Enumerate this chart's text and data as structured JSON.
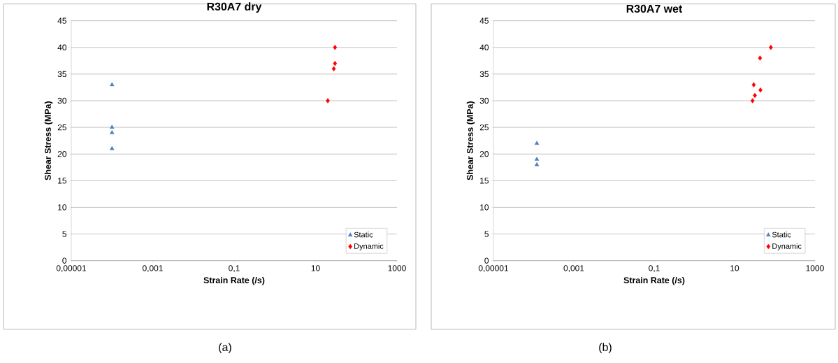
{
  "chart_data": [
    {
      "type": "scatter",
      "title": "R30A7 dry",
      "xlabel": "Strain Rate (/s)",
      "ylabel": "Shear Stress (MPa)",
      "annotations": [
        "(a)"
      ],
      "log": "x",
      "grid": "y",
      "legend": "bottom right",
      "xlim": [
        1e-05,
        1000
      ],
      "ylim": [
        0,
        45
      ],
      "xticks": [
        {
          "value": 1e-05,
          "label": "0,00001"
        },
        {
          "value": 0.001,
          "label": "0,001"
        },
        {
          "value": 0.1,
          "label": "0,1"
        },
        10,
        1000
      ],
      "yticks": [
        0,
        5,
        10,
        15,
        20,
        25,
        30,
        35,
        40,
        45
      ],
      "series": [
        {
          "name": "Static",
          "color": "#4f81bd",
          "marker": "triangle",
          "x": [
            0.0001,
            0.0001,
            0.0001,
            0.0001
          ],
          "values": [
            33,
            25,
            24,
            21
          ]
        },
        {
          "name": "Dynamic",
          "color": "#ff0000",
          "marker": "diamond",
          "x": [
            30,
            28,
            30,
            20
          ],
          "values": [
            40,
            36,
            37,
            30
          ]
        }
      ]
    },
    {
      "type": "scatter",
      "title": "R30A7 wet",
      "xlabel": "Strain Rate (/s)",
      "ylabel": "Shear Stress (MPa)",
      "annotations": [
        "(b)"
      ],
      "log": "x",
      "grid": "y",
      "legend": "bottom right",
      "xlim": [
        1e-05,
        1000
      ],
      "ylim": [
        0,
        45
      ],
      "xticks": [
        {
          "value": 1e-05,
          "label": "0,00001"
        },
        {
          "value": 0.001,
          "label": "0,001"
        },
        {
          "value": 0.1,
          "label": "0,1"
        },
        10,
        1000
      ],
      "yticks": [
        0,
        5,
        10,
        15,
        20,
        25,
        30,
        35,
        40,
        45
      ],
      "series": [
        {
          "name": "Static",
          "color": "#4f81bd",
          "marker": "triangle",
          "x": [
            0.00012,
            0.00012,
            0.00012
          ],
          "values": [
            22,
            19,
            18
          ]
        },
        {
          "name": "Dynamic",
          "color": "#ff0000",
          "marker": "diamond",
          "x": [
            28,
            32,
            30,
            44,
            43,
            80
          ],
          "values": [
            30,
            31,
            33,
            32,
            38,
            40
          ]
        }
      ]
    }
  ]
}
